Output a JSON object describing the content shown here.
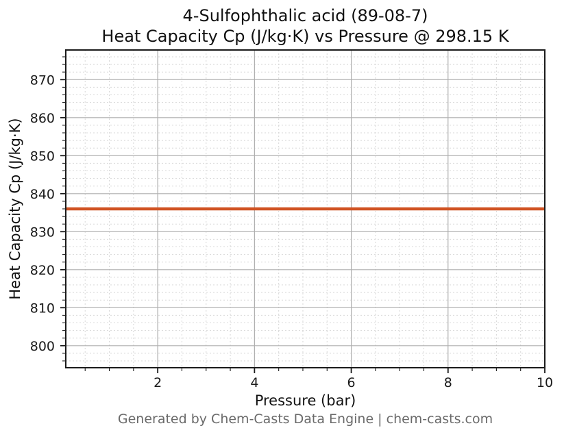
{
  "chart_data": {
    "type": "line",
    "title_lines": [
      "4-Sulfophthalic acid (89-08-7)",
      "Heat Capacity Cp (J/kg·K) vs Pressure @ 298.15 K"
    ],
    "xlabel": "Pressure (bar)",
    "ylabel": "Heat Capacity Cp (J/kg·K)",
    "footer": "Generated by Chem-Casts Data Engine | chem-casts.com",
    "xlim": [
      0.1,
      10
    ],
    "ylim": [
      794.2,
      877.8
    ],
    "x_major_ticks": [
      2,
      4,
      6,
      8,
      10
    ],
    "x_minor_step": 0.5,
    "y_major_ticks": [
      800,
      810,
      820,
      830,
      840,
      850,
      860,
      870
    ],
    "y_minor_step": 2,
    "grid": {
      "major": true,
      "minor": true,
      "legend": "none"
    },
    "series": [
      {
        "name": "Heat Capacity Cp",
        "x": [
          0.1,
          10
        ],
        "y": [
          836,
          836
        ],
        "constant_value": 836,
        "color": "#d05222",
        "linewidth": 4.5
      }
    ],
    "style": {
      "spine_color": "#1a1a1a",
      "major_grid_color": "#aeaeae",
      "minor_grid_color": "#d7d7d7",
      "tick_label_color": "#1a1a1a",
      "tick_label_size": 19,
      "background": "#ffffff"
    }
  }
}
